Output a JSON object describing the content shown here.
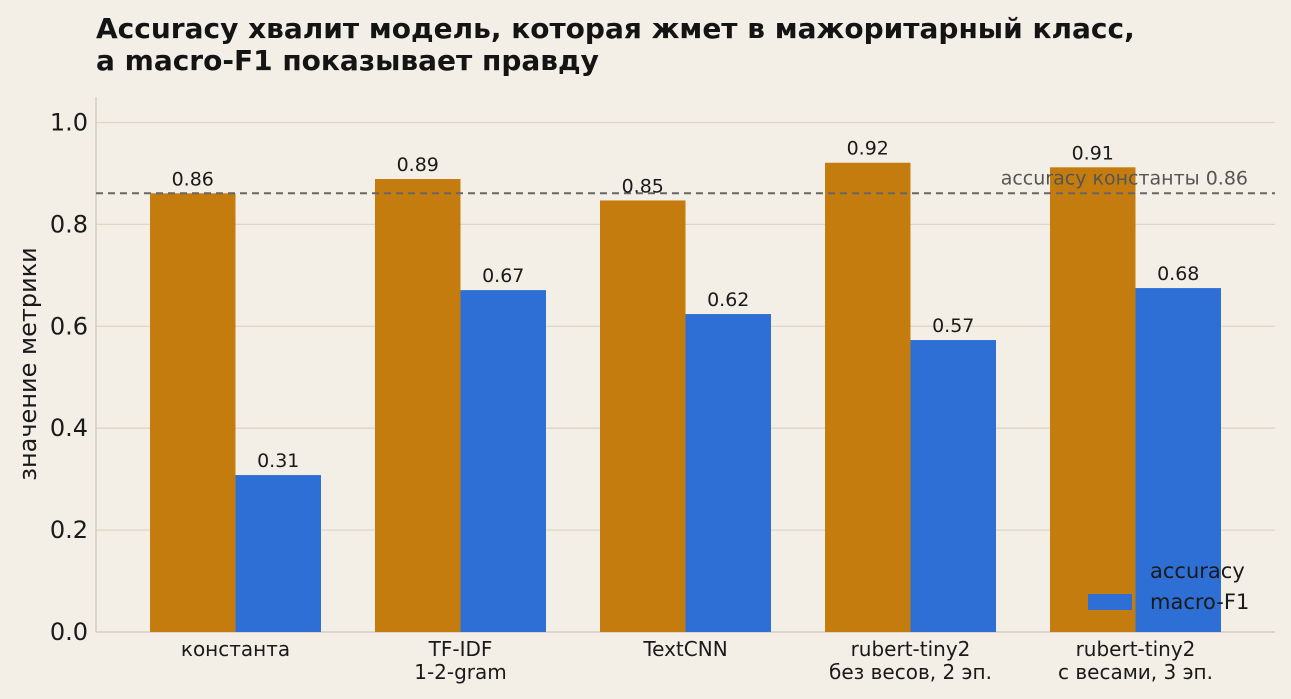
{
  "chart_data": {
    "type": "bar",
    "title_lines": [
      "Accuracy хвалит модель, которая жмет в мажоритарный класс,",
      "а macro-F1 показывает правду"
    ],
    "xlabel": "",
    "ylabel": "значение метрики",
    "ylim": [
      0,
      1.05
    ],
    "yticks": [
      "0.0",
      "0.2",
      "0.4",
      "0.6",
      "0.8",
      "1.0"
    ],
    "ytick_values": [
      0,
      0.2,
      0.4,
      0.6,
      0.8,
      1.0
    ],
    "grid": true,
    "categories": [
      [
        "константа"
      ],
      [
        "TF-IDF",
        "1-2-gram"
      ],
      [
        "TextCNN"
      ],
      [
        "rubert-tiny2",
        "без весов, 2 эп."
      ],
      [
        "rubert-tiny2",
        "с весами, 3 эп."
      ]
    ],
    "series": [
      {
        "name": "accuracy",
        "color": "#c57c0e",
        "values": [
          0.861,
          0.889,
          0.847,
          0.921,
          0.912
        ],
        "labels": [
          "0.86",
          "0.89",
          "0.85",
          "0.92",
          "0.91"
        ]
      },
      {
        "name": "macro-F1",
        "color": "#2e6fd6",
        "values": [
          0.308,
          0.671,
          0.624,
          0.573,
          0.675
        ],
        "labels": [
          "0.31",
          "0.67",
          "0.62",
          "0.57",
          "0.68"
        ]
      }
    ],
    "reference_line": {
      "value": 0.861,
      "label": "accuracy константы 0.86",
      "style": "dashed",
      "color": "#666666"
    },
    "legend": {
      "placement": "bottom-right"
    }
  }
}
